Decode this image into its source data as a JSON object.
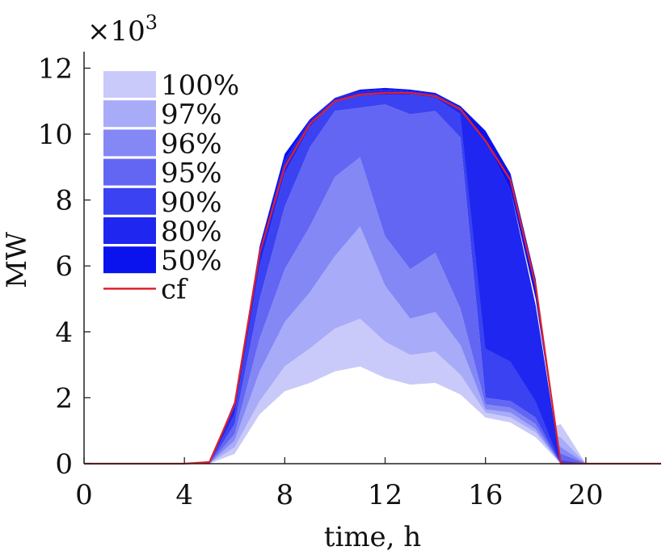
{
  "chart_data": {
    "type": "area",
    "title": "",
    "xlabel": "time, h",
    "ylabel": "MW",
    "y_multiplier_label": "×10",
    "y_multiplier_exponent": "3",
    "xlim": [
      0,
      23
    ],
    "ylim": [
      0,
      12.5
    ],
    "xticks": [
      0,
      4,
      8,
      12,
      16,
      20
    ],
    "yticks": [
      0,
      2,
      4,
      6,
      8,
      10,
      12
    ],
    "legend_position": "top-left",
    "x": [
      0,
      1,
      2,
      3,
      4,
      5,
      6,
      7,
      8,
      9,
      10,
      11,
      12,
      13,
      14,
      15,
      16,
      17,
      18,
      19,
      20,
      21,
      22,
      23
    ],
    "bands": [
      {
        "name": "100%",
        "color": "#c9caf9",
        "lower": [
          0,
          0,
          0,
          0,
          0,
          0,
          0.3,
          1.5,
          2.2,
          2.45,
          2.8,
          2.95,
          2.6,
          2.4,
          2.45,
          2.1,
          1.4,
          1.25,
          0.8,
          0,
          0,
          0,
          0,
          0
        ],
        "upper": [
          0,
          0,
          0,
          0,
          0,
          0,
          0.5,
          1.9,
          2.95,
          3.5,
          4.1,
          4.4,
          3.7,
          3.3,
          3.4,
          2.7,
          1.55,
          1.4,
          0.95,
          1.2,
          0,
          0,
          0,
          0
        ]
      },
      {
        "name": "97%",
        "color": "#a8abf7",
        "lower": [
          0,
          0,
          0,
          0,
          0,
          0,
          0.5,
          1.9,
          2.95,
          3.5,
          4.1,
          4.4,
          3.7,
          3.3,
          3.4,
          2.7,
          1.55,
          1.4,
          0.95,
          0,
          0,
          0,
          0,
          0
        ],
        "upper": [
          0,
          0,
          0,
          0,
          0,
          0,
          0.7,
          2.8,
          4.3,
          5.2,
          6.3,
          7.2,
          5.4,
          4.4,
          4.6,
          3.6,
          1.65,
          1.55,
          1.05,
          0.8,
          0,
          0,
          0,
          0
        ]
      },
      {
        "name": "96%",
        "color": "#8488f5",
        "lower": [
          0,
          0,
          0,
          0,
          0,
          0,
          0.7,
          2.8,
          4.3,
          5.2,
          6.3,
          7.2,
          5.4,
          4.4,
          4.6,
          3.6,
          1.65,
          1.55,
          1.05,
          0,
          0,
          0,
          0,
          0
        ],
        "upper": [
          0,
          0,
          0,
          0,
          0,
          0,
          0.9,
          3.8,
          5.9,
          7.2,
          8.7,
          9.3,
          6.9,
          5.9,
          6.4,
          4.7,
          1.8,
          1.7,
          1.2,
          0.5,
          0,
          0,
          0,
          0
        ]
      },
      {
        "name": "95%",
        "color": "#6266f3",
        "lower": [
          0,
          0,
          0,
          0,
          0,
          0,
          0.9,
          3.8,
          5.9,
          7.2,
          8.7,
          9.3,
          6.9,
          5.9,
          6.4,
          4.7,
          1.8,
          1.7,
          1.2,
          0,
          0,
          0,
          0,
          0
        ],
        "upper": [
          0,
          0,
          0,
          0,
          0,
          0,
          1.2,
          5.0,
          7.8,
          9.6,
          10.7,
          10.8,
          10.9,
          10.6,
          10.7,
          9.9,
          2.0,
          1.9,
          1.4,
          0.3,
          0,
          0,
          0,
          0
        ]
      },
      {
        "name": "90%",
        "color": "#3b42f1",
        "lower": [
          0,
          0,
          0,
          0,
          0,
          0,
          1.2,
          5.0,
          7.8,
          9.6,
          10.7,
          10.8,
          10.9,
          10.6,
          10.7,
          9.9,
          2.0,
          1.9,
          1.4,
          0,
          0,
          0,
          0,
          0
        ],
        "upper": [
          0,
          0,
          0,
          0,
          0,
          0,
          1.5,
          6.0,
          8.8,
          10.2,
          11.0,
          11.2,
          11.2,
          11.2,
          11.1,
          10.6,
          8.8,
          5.5,
          3.9,
          0.1,
          0,
          0,
          0,
          0
        ]
      },
      {
        "name": "80%",
        "color": "#1e26ef",
        "lower": [
          0,
          0,
          0,
          0,
          0,
          0,
          1.5,
          6.0,
          8.8,
          10.2,
          11.0,
          11.2,
          11.2,
          11.2,
          11.1,
          10.6,
          3.5,
          3.1,
          1.9,
          0,
          0,
          0,
          0,
          0
        ],
        "upper": [
          0,
          0,
          0,
          0,
          0,
          0,
          1.75,
          6.4,
          9.2,
          10.4,
          11.1,
          11.3,
          11.35,
          11.3,
          11.2,
          10.8,
          9.8,
          8.3,
          4.8,
          0,
          0,
          0,
          0,
          0
        ]
      },
      {
        "name": "50%",
        "color": "#0a12ee",
        "lower": [
          0,
          0,
          0,
          0,
          0,
          0,
          1.75,
          6.4,
          9.2,
          10.4,
          11.1,
          11.3,
          11.35,
          11.3,
          11.2,
          10.8,
          9.8,
          8.3,
          5.0,
          0,
          0,
          0,
          0,
          0
        ],
        "upper": [
          0,
          0,
          0,
          0,
          0,
          0.05,
          1.9,
          6.6,
          9.4,
          10.45,
          11.1,
          11.35,
          11.4,
          11.35,
          11.25,
          10.85,
          10.1,
          8.8,
          5.6,
          0,
          0,
          0,
          0,
          0
        ]
      }
    ],
    "line": {
      "name": "cf",
      "color": "#e0202a",
      "values": [
        0,
        0,
        0,
        0,
        0,
        0.05,
        1.8,
        6.4,
        9.0,
        10.3,
        11.0,
        11.2,
        11.25,
        11.25,
        11.15,
        10.75,
        9.8,
        8.6,
        5.4,
        0,
        0,
        0,
        0,
        0
      ]
    }
  }
}
